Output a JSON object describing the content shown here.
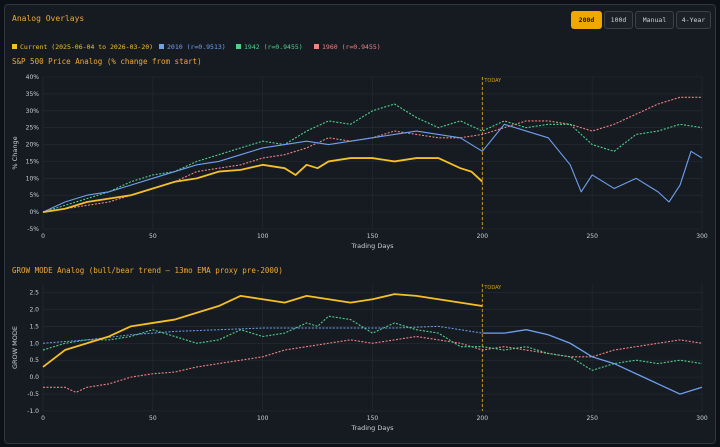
{
  "header": {
    "title": "Analog Overlays",
    "buttons": [
      {
        "label": "200d",
        "active": true
      },
      {
        "label": "100d",
        "active": false
      },
      {
        "label": "Manual",
        "active": false
      },
      {
        "label": "4-Year",
        "active": false
      }
    ]
  },
  "legend": [
    {
      "label": "Current (2025-06-04 to 2026-03-20)",
      "color": "#f5c026"
    },
    {
      "label": "2010 (r=0.9513)",
      "color": "#6fa0f0"
    },
    {
      "label": "1942 (r=0.9455)",
      "color": "#4fd18b"
    },
    {
      "label": "1960 (r=0.9455)",
      "color": "#f08282"
    }
  ],
  "colors": {
    "current": "#f5c026",
    "s2010": "#6fa0f0",
    "s1942": "#4fd18b",
    "s1960": "#f08282",
    "today": "#d4a017",
    "grid": "#262c34",
    "axis": "#c9d1d9"
  },
  "chart_data": [
    {
      "type": "line",
      "title": "S&P 500 Price Analog (% change from start)",
      "xlabel": "Trading Days",
      "ylabel": "% Change",
      "xlim": [
        0,
        300
      ],
      "ylim": [
        -5,
        40
      ],
      "xticks": [
        0,
        50,
        100,
        150,
        200,
        250,
        300
      ],
      "yticks": [
        -5,
        0,
        5,
        10,
        15,
        20,
        25,
        30,
        35,
        40
      ],
      "ytick_labels": [
        "-5%",
        "0%",
        "5%",
        "10%",
        "15%",
        "20%",
        "25%",
        "30%",
        "35%",
        "40%"
      ],
      "today_x": 200,
      "today_label": "TODAY",
      "series": [
        {
          "name": "Current",
          "style": "solid",
          "points": [
            [
              0,
              0
            ],
            [
              10,
              1
            ],
            [
              20,
              3
            ],
            [
              30,
              4
            ],
            [
              40,
              5
            ],
            [
              50,
              7
            ],
            [
              60,
              9
            ],
            [
              70,
              10
            ],
            [
              80,
              12
            ],
            [
              90,
              12.5
            ],
            [
              100,
              14
            ],
            [
              110,
              13
            ],
            [
              115,
              11
            ],
            [
              120,
              14
            ],
            [
              125,
              13
            ],
            [
              130,
              15
            ],
            [
              140,
              16
            ],
            [
              150,
              16
            ],
            [
              160,
              15
            ],
            [
              170,
              16
            ],
            [
              180,
              16
            ],
            [
              190,
              13
            ],
            [
              195,
              12
            ],
            [
              200,
              9
            ]
          ]
        },
        {
          "name": "2010",
          "style": "solid",
          "points": [
            [
              0,
              0
            ],
            [
              10,
              3
            ],
            [
              20,
              5
            ],
            [
              30,
              6
            ],
            [
              40,
              8
            ],
            [
              50,
              10
            ],
            [
              60,
              12
            ],
            [
              70,
              14
            ],
            [
              80,
              15
            ],
            [
              90,
              17
            ],
            [
              100,
              19
            ],
            [
              110,
              20
            ],
            [
              120,
              21
            ],
            [
              130,
              20
            ],
            [
              140,
              21
            ],
            [
              150,
              22
            ],
            [
              160,
              23
            ],
            [
              170,
              24
            ],
            [
              180,
              23
            ],
            [
              190,
              22
            ],
            [
              200,
              18
            ],
            [
              205,
              22
            ],
            [
              210,
              26
            ],
            [
              220,
              24
            ],
            [
              230,
              22
            ],
            [
              240,
              14
            ],
            [
              245,
              6
            ],
            [
              250,
              11
            ],
            [
              260,
              7
            ],
            [
              270,
              10
            ],
            [
              280,
              6
            ],
            [
              285,
              3
            ],
            [
              290,
              8
            ],
            [
              295,
              18
            ],
            [
              300,
              16
            ]
          ]
        },
        {
          "name": "1942",
          "style": "dashed",
          "points": [
            [
              0,
              0
            ],
            [
              10,
              2
            ],
            [
              20,
              4
            ],
            [
              30,
              6
            ],
            [
              40,
              9
            ],
            [
              50,
              11
            ],
            [
              60,
              12
            ],
            [
              70,
              15
            ],
            [
              80,
              17
            ],
            [
              90,
              19
            ],
            [
              100,
              21
            ],
            [
              110,
              20
            ],
            [
              120,
              24
            ],
            [
              130,
              27
            ],
            [
              140,
              26
            ],
            [
              150,
              30
            ],
            [
              160,
              32
            ],
            [
              170,
              28
            ],
            [
              180,
              25
            ],
            [
              190,
              27
            ],
            [
              200,
              24
            ],
            [
              210,
              27
            ],
            [
              220,
              25
            ],
            [
              230,
              26
            ],
            [
              240,
              26
            ],
            [
              250,
              20
            ],
            [
              260,
              18
            ],
            [
              270,
              23
            ],
            [
              280,
              24
            ],
            [
              290,
              26
            ],
            [
              300,
              25
            ]
          ]
        },
        {
          "name": "1960",
          "style": "dashed",
          "points": [
            [
              0,
              0
            ],
            [
              10,
              1
            ],
            [
              20,
              2
            ],
            [
              30,
              3
            ],
            [
              40,
              5
            ],
            [
              50,
              7
            ],
            [
              60,
              9
            ],
            [
              70,
              12
            ],
            [
              80,
              13
            ],
            [
              90,
              14
            ],
            [
              100,
              16
            ],
            [
              110,
              17
            ],
            [
              120,
              19
            ],
            [
              130,
              22
            ],
            [
              140,
              21
            ],
            [
              150,
              22
            ],
            [
              160,
              24
            ],
            [
              170,
              23
            ],
            [
              180,
              22
            ],
            [
              190,
              22
            ],
            [
              200,
              23
            ],
            [
              210,
              25
            ],
            [
              220,
              27
            ],
            [
              230,
              27
            ],
            [
              240,
              26
            ],
            [
              250,
              24
            ],
            [
              260,
              26
            ],
            [
              270,
              29
            ],
            [
              280,
              32
            ],
            [
              290,
              34
            ],
            [
              300,
              34
            ]
          ]
        }
      ]
    },
    {
      "type": "line",
      "title": "GROW MODE Analog (bull/bear trend — 13mo EMA proxy pre-2000)",
      "xlabel": "Trading Days",
      "ylabel": "GROW MODE",
      "xlim": [
        0,
        300
      ],
      "ylim": [
        -1,
        2.75
      ],
      "xticks": [
        0,
        50,
        100,
        150,
        200,
        250,
        300
      ],
      "yticks": [
        -1.0,
        -0.5,
        0.0,
        0.5,
        1.0,
        1.5,
        2.0,
        2.5
      ],
      "ytick_labels": [
        "-1.0",
        "-0.5",
        "0.0",
        "0.5",
        "1.0",
        "1.5",
        "2.0",
        "2.5"
      ],
      "today_x": 200,
      "today_label": "TODAY",
      "series": [
        {
          "name": "Current",
          "style": "solid",
          "points": [
            [
              0,
              0.3
            ],
            [
              10,
              0.8
            ],
            [
              20,
              1.0
            ],
            [
              30,
              1.2
            ],
            [
              40,
              1.5
            ],
            [
              50,
              1.6
            ],
            [
              60,
              1.7
            ],
            [
              70,
              1.9
            ],
            [
              80,
              2.1
            ],
            [
              90,
              2.4
            ],
            [
              100,
              2.3
            ],
            [
              110,
              2.2
            ],
            [
              120,
              2.4
            ],
            [
              130,
              2.3
            ],
            [
              140,
              2.2
            ],
            [
              150,
              2.3
            ],
            [
              160,
              2.45
            ],
            [
              170,
              2.4
            ],
            [
              180,
              2.3
            ],
            [
              190,
              2.2
            ],
            [
              200,
              2.1
            ]
          ]
        },
        {
          "name": "2010",
          "style": "dashed-to-solid",
          "points": [
            [
              0,
              1.0
            ],
            [
              20,
              1.1
            ],
            [
              40,
              1.25
            ],
            [
              60,
              1.35
            ],
            [
              80,
              1.4
            ],
            [
              100,
              1.45
            ],
            [
              120,
              1.45
            ],
            [
              140,
              1.45
            ],
            [
              160,
              1.45
            ],
            [
              180,
              1.5
            ],
            [
              200,
              1.3
            ],
            [
              210,
              1.3
            ],
            [
              220,
              1.4
            ],
            [
              230,
              1.25
            ],
            [
              240,
              1.0
            ],
            [
              250,
              0.6
            ],
            [
              260,
              0.4
            ],
            [
              270,
              0.1
            ],
            [
              280,
              -0.2
            ],
            [
              290,
              -0.5
            ],
            [
              300,
              -0.3
            ]
          ]
        },
        {
          "name": "1942",
          "style": "dashed",
          "points": [
            [
              0,
              0.8
            ],
            [
              10,
              1.0
            ],
            [
              20,
              1.1
            ],
            [
              30,
              1.1
            ],
            [
              40,
              1.2
            ],
            [
              50,
              1.4
            ],
            [
              60,
              1.2
            ],
            [
              70,
              1.0
            ],
            [
              80,
              1.1
            ],
            [
              90,
              1.4
            ],
            [
              100,
              1.2
            ],
            [
              110,
              1.3
            ],
            [
              120,
              1.6
            ],
            [
              125,
              1.5
            ],
            [
              130,
              1.8
            ],
            [
              140,
              1.7
            ],
            [
              150,
              1.3
            ],
            [
              160,
              1.6
            ],
            [
              170,
              1.4
            ],
            [
              180,
              1.3
            ],
            [
              190,
              0.9
            ],
            [
              200,
              0.9
            ],
            [
              210,
              0.8
            ],
            [
              220,
              0.9
            ],
            [
              230,
              0.7
            ],
            [
              240,
              0.6
            ],
            [
              250,
              0.2
            ],
            [
              260,
              0.4
            ],
            [
              270,
              0.5
            ],
            [
              280,
              0.4
            ],
            [
              290,
              0.5
            ],
            [
              300,
              0.4
            ]
          ]
        },
        {
          "name": "1960",
          "style": "dashed",
          "points": [
            [
              0,
              -0.3
            ],
            [
              10,
              -0.3
            ],
            [
              15,
              -0.45
            ],
            [
              20,
              -0.3
            ],
            [
              30,
              -0.2
            ],
            [
              40,
              0.0
            ],
            [
              50,
              0.1
            ],
            [
              60,
              0.15
            ],
            [
              70,
              0.3
            ],
            [
              80,
              0.4
            ],
            [
              90,
              0.5
            ],
            [
              100,
              0.6
            ],
            [
              110,
              0.8
            ],
            [
              120,
              0.9
            ],
            [
              130,
              1.0
            ],
            [
              140,
              1.1
            ],
            [
              150,
              1.0
            ],
            [
              160,
              1.1
            ],
            [
              170,
              1.2
            ],
            [
              180,
              1.1
            ],
            [
              190,
              1.0
            ],
            [
              200,
              0.8
            ],
            [
              210,
              0.9
            ],
            [
              220,
              0.8
            ],
            [
              230,
              0.7
            ],
            [
              240,
              0.6
            ],
            [
              250,
              0.6
            ],
            [
              260,
              0.8
            ],
            [
              270,
              0.9
            ],
            [
              280,
              1.0
            ],
            [
              290,
              1.1
            ],
            [
              300,
              1.0
            ]
          ]
        }
      ]
    }
  ]
}
